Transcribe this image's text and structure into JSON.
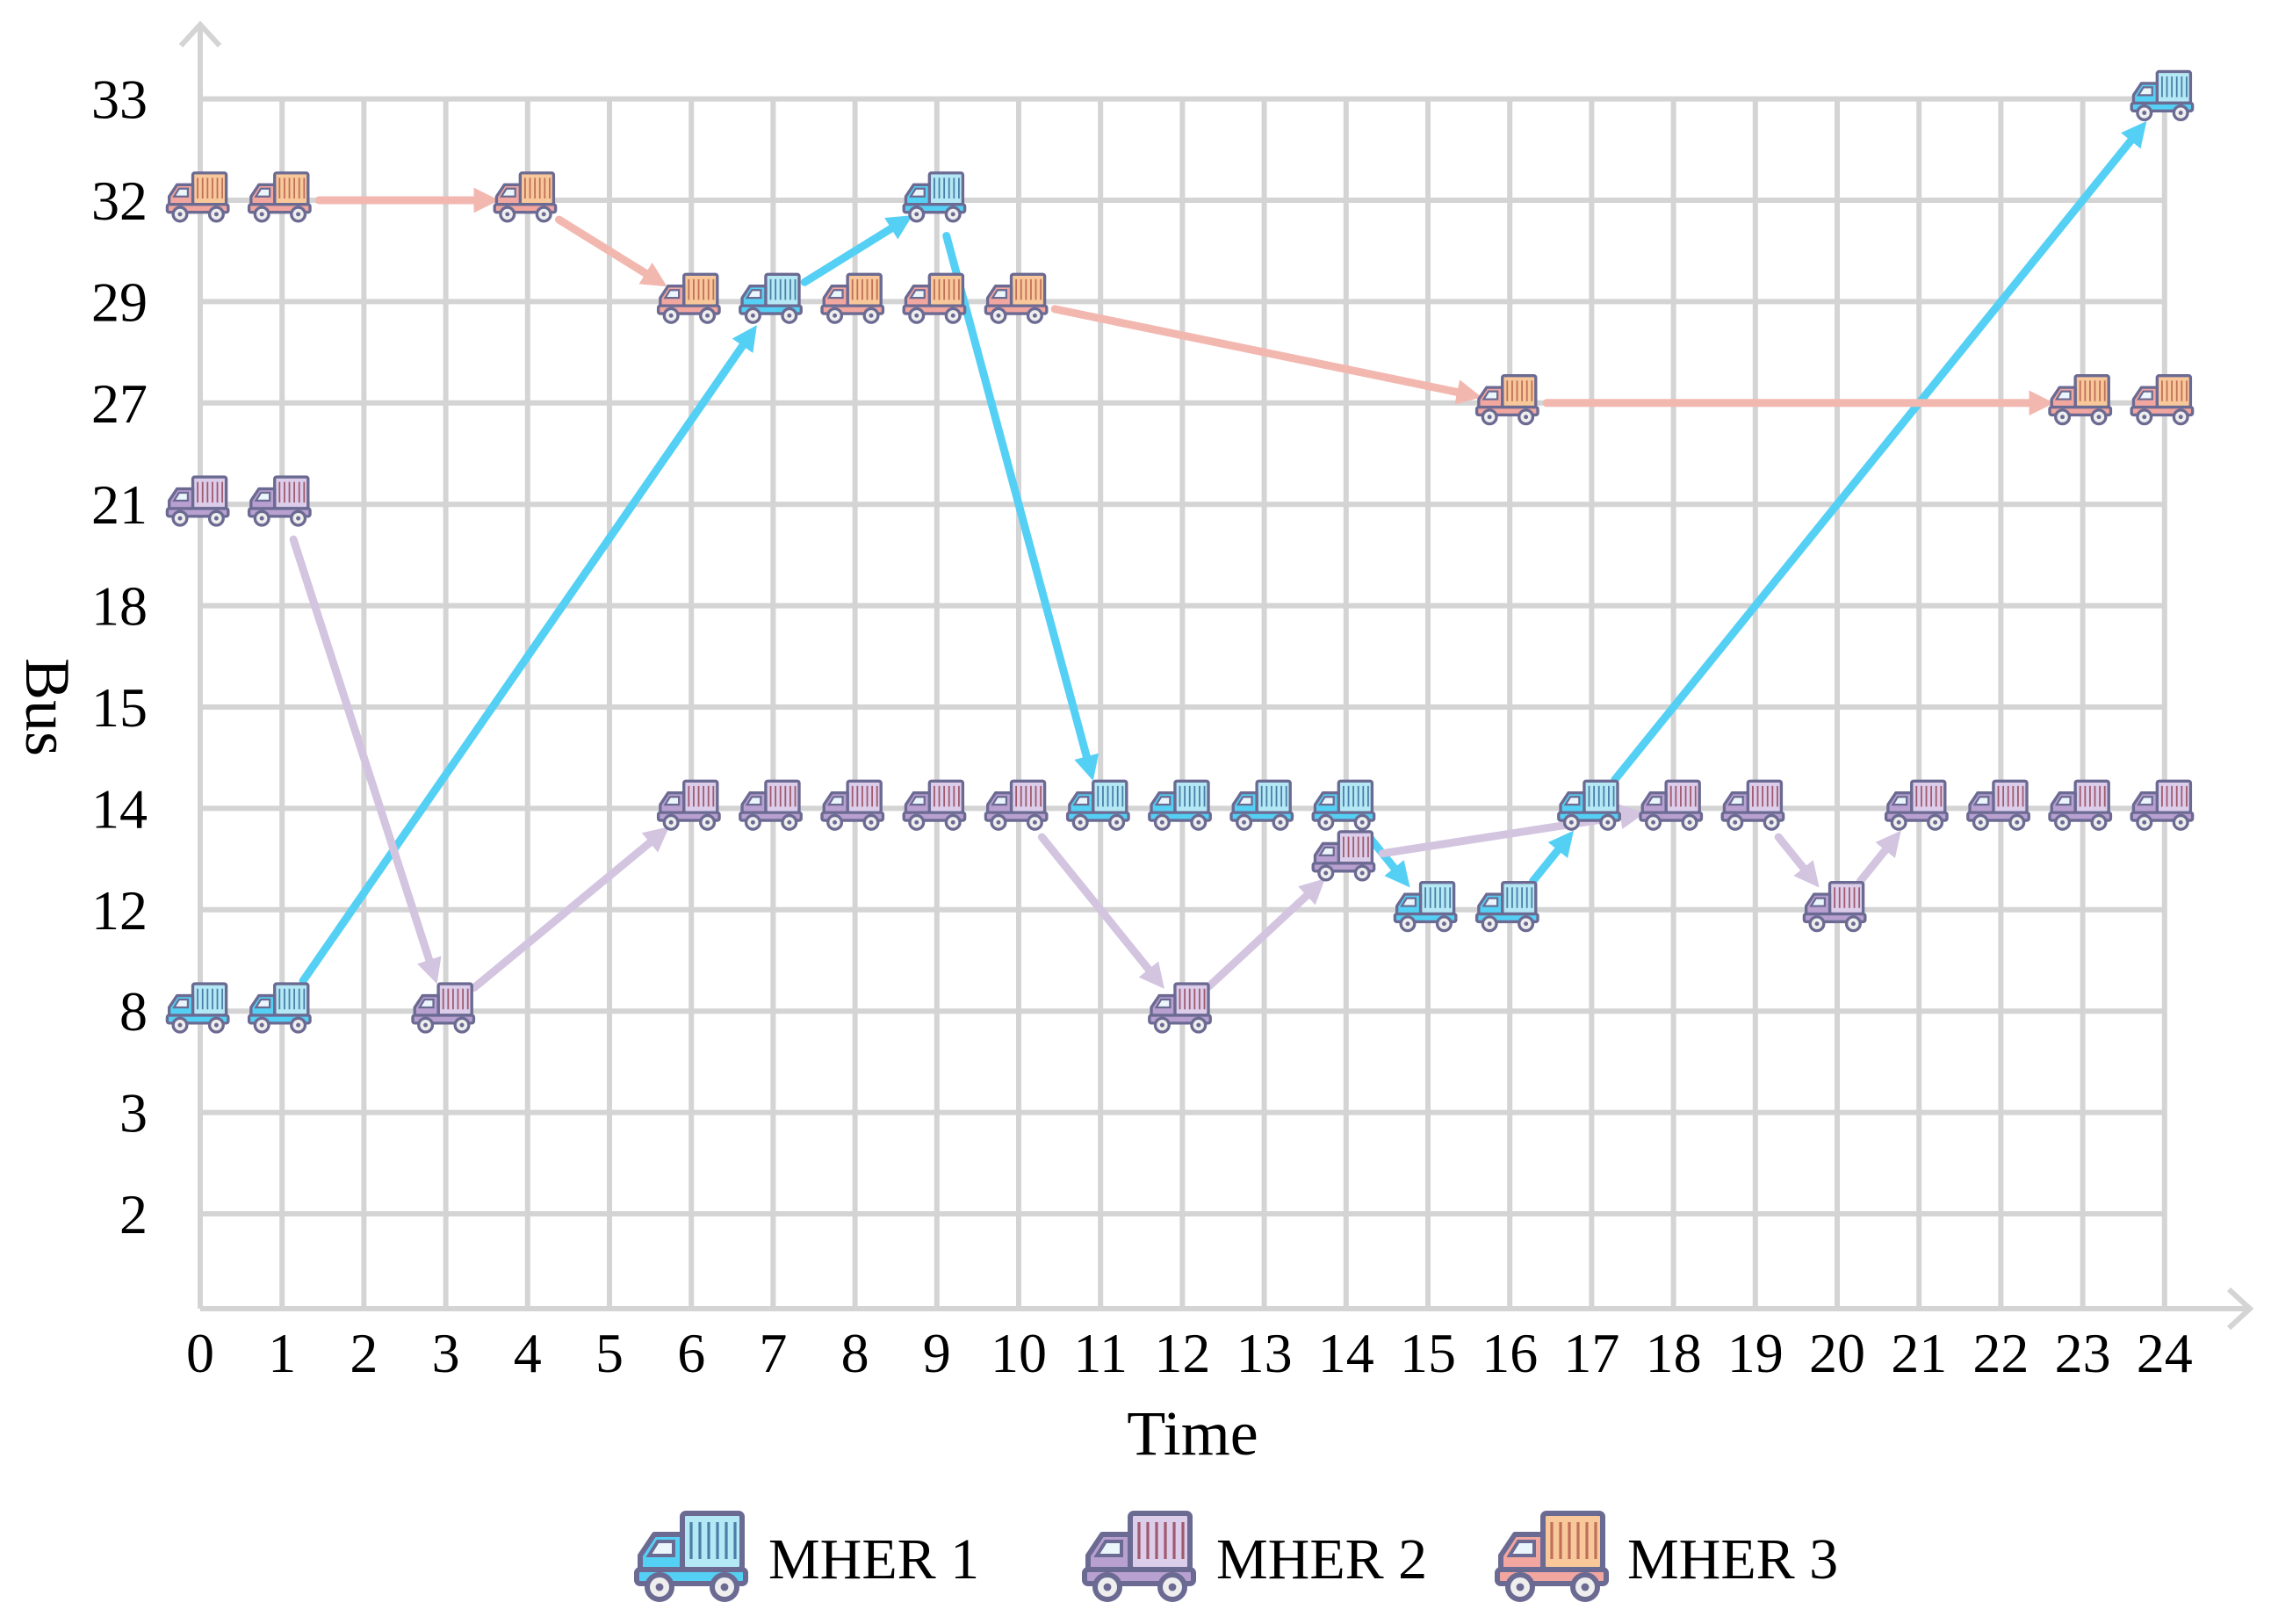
{
  "chart_data": {
    "type": "scatter",
    "title": "",
    "xlabel": "Time",
    "ylabel": "Bus",
    "x_ticks": [
      "0",
      "1",
      "2",
      "3",
      "4",
      "5",
      "6",
      "7",
      "8",
      "9",
      "10",
      "11",
      "12",
      "13",
      "14",
      "15",
      "16",
      "17",
      "18",
      "19",
      "20",
      "21",
      "22",
      "23",
      "24"
    ],
    "y_ticks": [
      "2",
      "3",
      "8",
      "12",
      "14",
      "15",
      "18",
      "21",
      "27",
      "29",
      "32",
      "33"
    ],
    "grid": true,
    "legend_position": "bottom",
    "series": [
      {
        "name": "MHER 1",
        "color": "#55d0f5",
        "icon": "truck-icon-blue",
        "points": [
          {
            "t": 0,
            "bus": "8"
          },
          {
            "t": 1,
            "bus": "8"
          },
          {
            "t": 7,
            "bus": "29"
          },
          {
            "t": 9,
            "bus": "32"
          },
          {
            "t": 11,
            "bus": "14"
          },
          {
            "t": 12,
            "bus": "14"
          },
          {
            "t": 13,
            "bus": "14"
          },
          {
            "t": 14,
            "bus": "14"
          },
          {
            "t": 15,
            "bus": "12"
          },
          {
            "t": 16,
            "bus": "12"
          },
          {
            "t": 17,
            "bus": "14"
          },
          {
            "t": 24,
            "bus": "33"
          }
        ],
        "moves": [
          {
            "from": {
              "t": 1,
              "bus": "8"
            },
            "to": {
              "t": 7,
              "bus": "29"
            }
          },
          {
            "from": {
              "t": 7,
              "bus": "29"
            },
            "to": {
              "t": 9,
              "bus": "32"
            }
          },
          {
            "from": {
              "t": 9,
              "bus": "32"
            },
            "to": {
              "t": 11,
              "bus": "14"
            }
          },
          {
            "from": {
              "t": 14,
              "bus": "14"
            },
            "to": {
              "t": 15,
              "bus": "12"
            }
          },
          {
            "from": {
              "t": 16,
              "bus": "12"
            },
            "to": {
              "t": 17,
              "bus": "14"
            }
          },
          {
            "from": {
              "t": 17,
              "bus": "14"
            },
            "to": {
              "t": 24,
              "bus": "33"
            }
          }
        ]
      },
      {
        "name": "MHER 2",
        "color": "#d3c4e0",
        "icon": "truck-icon-purple",
        "points": [
          {
            "t": 0,
            "bus": "21"
          },
          {
            "t": 1,
            "bus": "21"
          },
          {
            "t": 3,
            "bus": "8"
          },
          {
            "t": 6,
            "bus": "14"
          },
          {
            "t": 7,
            "bus": "14"
          },
          {
            "t": 8,
            "bus": "14"
          },
          {
            "t": 9,
            "bus": "14"
          },
          {
            "t": 10,
            "bus": "14"
          },
          {
            "t": 12,
            "bus": "8"
          },
          {
            "t": 14,
            "bus": "13"
          },
          {
            "t": 18,
            "bus": "14"
          },
          {
            "t": 19,
            "bus": "14"
          },
          {
            "t": 20,
            "bus": "12"
          },
          {
            "t": 21,
            "bus": "14"
          },
          {
            "t": 22,
            "bus": "14"
          },
          {
            "t": 23,
            "bus": "14"
          },
          {
            "t": 24,
            "bus": "14"
          }
        ],
        "moves": [
          {
            "from": {
              "t": 1,
              "bus": "21"
            },
            "to": {
              "t": 3,
              "bus": "8"
            }
          },
          {
            "from": {
              "t": 3,
              "bus": "8"
            },
            "to": {
              "t": 6,
              "bus": "14"
            }
          },
          {
            "from": {
              "t": 10,
              "bus": "14"
            },
            "to": {
              "t": 12,
              "bus": "8"
            }
          },
          {
            "from": {
              "t": 12,
              "bus": "8"
            },
            "to": {
              "t": 14,
              "bus": "13"
            }
          },
          {
            "from": {
              "t": 14,
              "bus": "13"
            },
            "to": {
              "t": 18,
              "bus": "14"
            }
          },
          {
            "from": {
              "t": 19,
              "bus": "14"
            },
            "to": {
              "t": 20,
              "bus": "12"
            }
          },
          {
            "from": {
              "t": 20,
              "bus": "12"
            },
            "to": {
              "t": 21,
              "bus": "14"
            }
          }
        ]
      },
      {
        "name": "MHER 3",
        "color": "#f2b8b0",
        "icon": "truck-icon-orange",
        "points": [
          {
            "t": 0,
            "bus": "32"
          },
          {
            "t": 1,
            "bus": "32"
          },
          {
            "t": 4,
            "bus": "32"
          },
          {
            "t": 6,
            "bus": "29"
          },
          {
            "t": 8,
            "bus": "29"
          },
          {
            "t": 9,
            "bus": "29"
          },
          {
            "t": 10,
            "bus": "29"
          },
          {
            "t": 16,
            "bus": "27"
          },
          {
            "t": 23,
            "bus": "27"
          },
          {
            "t": 24,
            "bus": "27"
          }
        ],
        "moves": [
          {
            "from": {
              "t": 1,
              "bus": "32"
            },
            "to": {
              "t": 4,
              "bus": "32"
            }
          },
          {
            "from": {
              "t": 4,
              "bus": "32"
            },
            "to": {
              "t": 6,
              "bus": "29"
            }
          },
          {
            "from": {
              "t": 10,
              "bus": "29"
            },
            "to": {
              "t": 16,
              "bus": "27"
            }
          },
          {
            "from": {
              "t": 16,
              "bus": "27"
            },
            "to": {
              "t": 23,
              "bus": "27"
            }
          }
        ]
      }
    ]
  }
}
